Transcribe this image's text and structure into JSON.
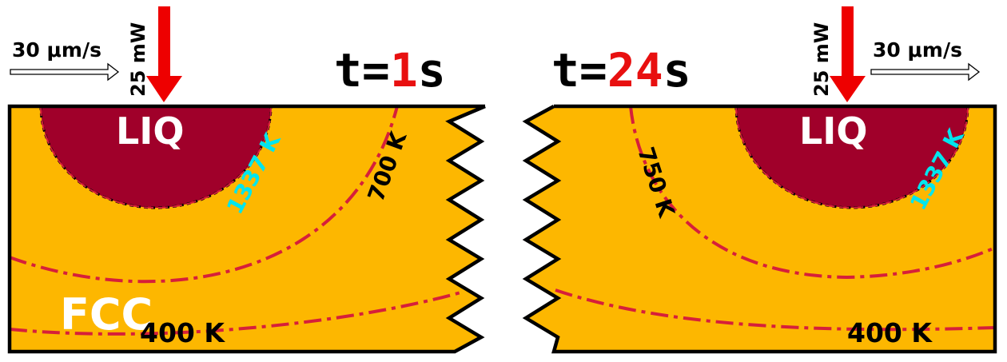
{
  "left_panel": {
    "speed": "30 μm/s",
    "power": "25 mW",
    "time_prefix": "t=",
    "time_value": "1",
    "time_unit": "s",
    "liquid_label": "LIQ",
    "solid_label": "FCC",
    "isotherms": [
      "1337 K",
      "700 K",
      "400 K"
    ]
  },
  "right_panel": {
    "speed": "30 μm/s",
    "power": "25 mW",
    "time_prefix": "t=",
    "time_value": "24",
    "time_unit": "s",
    "liquid_label": "LIQ",
    "isotherms": [
      "1337 K",
      "750 K",
      "400 K"
    ]
  },
  "colors": {
    "solid_fcc": "#FDB700",
    "liquid": "#A0002A",
    "isotherm_line": "#D61F3A",
    "melt_isotherm_text": "#00E5EE",
    "laser_arrow": "#EE0000",
    "time_value": "#E81010"
  }
}
